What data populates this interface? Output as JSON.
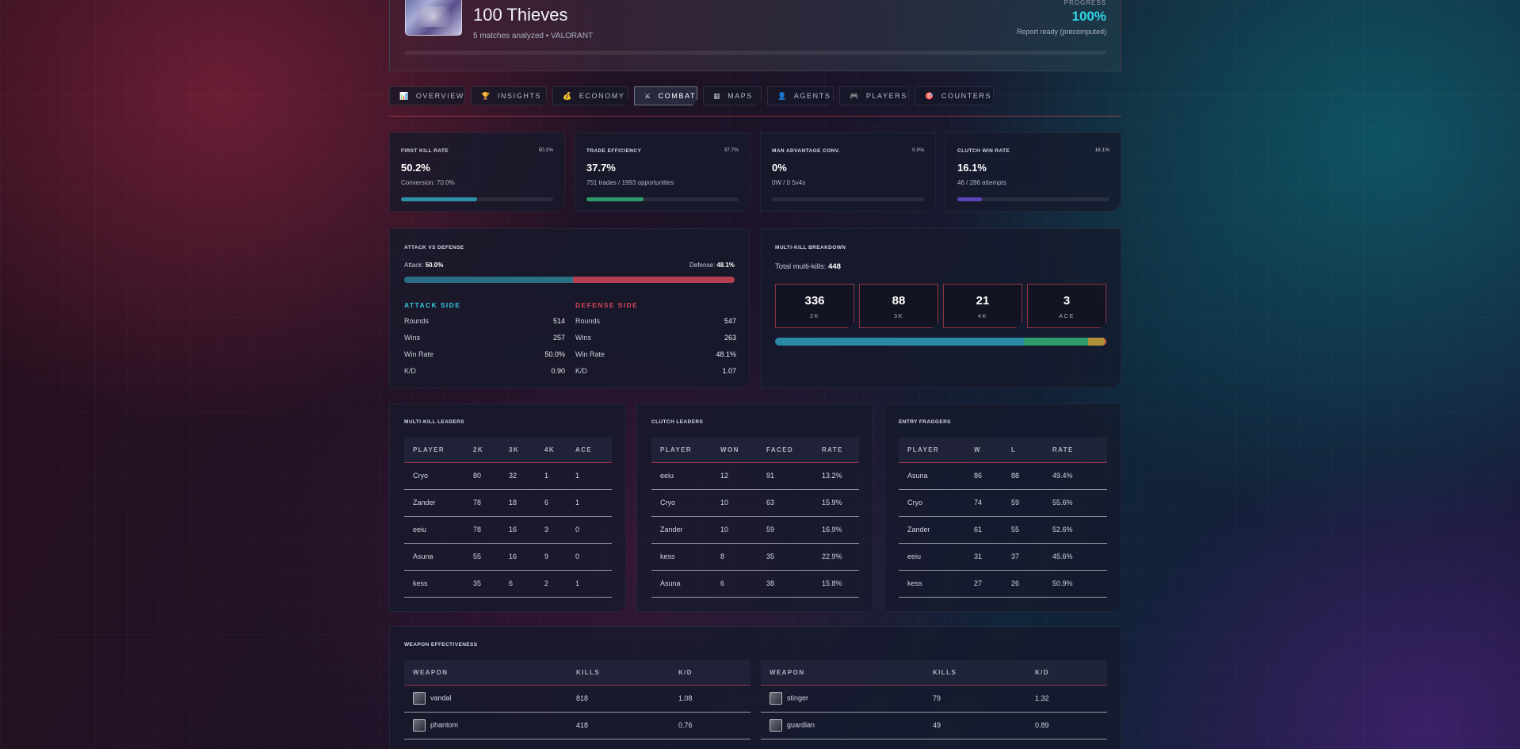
{
  "header": {
    "team_name": "100 Thieves",
    "subtitle": "5 matches analyzed • VALORANT",
    "progress_label": "PROGRESS",
    "progress_value": "100%",
    "status": "Report ready (precomputed)"
  },
  "tabs": [
    {
      "icon": "📊",
      "label": "OVERVIEW"
    },
    {
      "icon": "🏆",
      "label": "INSIGHTS"
    },
    {
      "icon": "💰",
      "label": "ECONOMY"
    },
    {
      "icon": "⚔",
      "label": "COMBAT"
    },
    {
      "icon": "▦",
      "label": "MAPS"
    },
    {
      "icon": "👤",
      "label": "AGENTS"
    },
    {
      "icon": "🎮",
      "label": "PLAYERS"
    },
    {
      "icon": "🎯",
      "label": "COUNTERS"
    }
  ],
  "active_tab": "COMBAT",
  "stats": [
    {
      "title": "FIRST KILL RATE",
      "small": "50.2%",
      "big": "50.2%",
      "sub": "Conversion: 70.0%",
      "fill": 0.502,
      "color": "#2e8fa8"
    },
    {
      "title": "TRADE EFFICIENCY",
      "small": "37.7%",
      "big": "37.7%",
      "sub": "751 trades / 1993 opportunities",
      "fill": 0.377,
      "color": "#2f9a6a"
    },
    {
      "title": "MAN ADVANTAGE CONV.",
      "small": "0.0%",
      "big": "0%",
      "sub": "0W / 0 5v4s",
      "fill": 0,
      "color": "#2e8fa8"
    },
    {
      "title": "CLUTCH WIN RATE",
      "small": "16.1%",
      "big": "16.1%",
      "sub": "46 / 286 attempts",
      "fill": 0.161,
      "color": "#5a44b8"
    }
  ],
  "attack_defense": {
    "title": "ATTACK VS DEFENSE",
    "attack_label": "Attack:",
    "attack_pct": "50.0%",
    "defense_label": "Defense:",
    "defense_pct": "48.1%",
    "attack_share": 0.51,
    "attack_color": "#2b6f86",
    "defense_color": "#b43f50",
    "attack_side": {
      "heading": "ATTACK SIDE",
      "rows": [
        {
          "label": "Rounds",
          "value": "514"
        },
        {
          "label": "Wins",
          "value": "257"
        },
        {
          "label": "Win Rate",
          "value": "50.0%"
        },
        {
          "label": "K/D",
          "value": "0.90"
        }
      ]
    },
    "defense_side": {
      "heading": "DEFENSE SIDE",
      "rows": [
        {
          "label": "Rounds",
          "value": "547"
        },
        {
          "label": "Wins",
          "value": "263"
        },
        {
          "label": "Win Rate",
          "value": "48.1%"
        },
        {
          "label": "K/D",
          "value": "1.07"
        }
      ]
    }
  },
  "multi_kill": {
    "title": "MULTI-KILL BREAKDOWN",
    "total_label": "Total multi-kills:",
    "total": "448",
    "boxes": [
      {
        "value": "336",
        "label": "2K"
      },
      {
        "value": "88",
        "label": "3K"
      },
      {
        "value": "21",
        "label": "4K"
      },
      {
        "value": "3",
        "label": "ACE"
      }
    ],
    "segments": [
      {
        "share": 0.75,
        "color": "#2a8aa6"
      },
      {
        "share": 0.196,
        "color": "#2f9a6a"
      },
      {
        "share": 0.047,
        "color": "#b0913a"
      },
      {
        "share": 0.007,
        "color": "#c56a3a"
      }
    ]
  },
  "multi_kill_leaders": {
    "title": "MULTI-KILL LEADERS",
    "columns": [
      "PLAYER",
      "2K",
      "3K",
      "4K",
      "ACE"
    ],
    "rows": [
      [
        "Cryo",
        "80",
        "32",
        "1",
        "1"
      ],
      [
        "Zander",
        "78",
        "18",
        "6",
        "1"
      ],
      [
        "eeiu",
        "78",
        "16",
        "3",
        "0"
      ],
      [
        "Asuna",
        "55",
        "16",
        "9",
        "0"
      ],
      [
        "kess",
        "35",
        "6",
        "2",
        "1"
      ]
    ]
  },
  "clutch_leaders": {
    "title": "CLUTCH LEADERS",
    "columns": [
      "PLAYER",
      "WON",
      "FACED",
      "RATE"
    ],
    "rows": [
      [
        "eeiu",
        "12",
        "91",
        "13.2%"
      ],
      [
        "Cryo",
        "10",
        "63",
        "15.9%"
      ],
      [
        "Zander",
        "10",
        "59",
        "16.9%"
      ],
      [
        "kess",
        "8",
        "35",
        "22.9%"
      ],
      [
        "Asuna",
        "6",
        "38",
        "15.8%"
      ]
    ]
  },
  "entry_fraggers": {
    "title": "ENTRY FRAGGERS",
    "columns": [
      "PLAYER",
      "W",
      "L",
      "RATE"
    ],
    "rows": [
      [
        "Asuna",
        "86",
        "88",
        "49.4%"
      ],
      [
        "Cryo",
        "74",
        "59",
        "55.6%"
      ],
      [
        "Zander",
        "61",
        "55",
        "52.6%"
      ],
      [
        "eeiu",
        "31",
        "37",
        "45.6%"
      ],
      [
        "kess",
        "27",
        "26",
        "50.9%"
      ]
    ]
  },
  "weapons": {
    "title": "WEAPON EFFECTIVENESS",
    "columns": [
      "WEAPON",
      "KILLS",
      "K/D"
    ],
    "left_rows": [
      [
        "vandal",
        "818",
        "1.08"
      ],
      [
        "phantom",
        "418",
        "0.76"
      ]
    ],
    "right_rows": [
      [
        "stinger",
        "79",
        "1.32"
      ],
      [
        "guardian",
        "49",
        "0.89"
      ]
    ]
  }
}
